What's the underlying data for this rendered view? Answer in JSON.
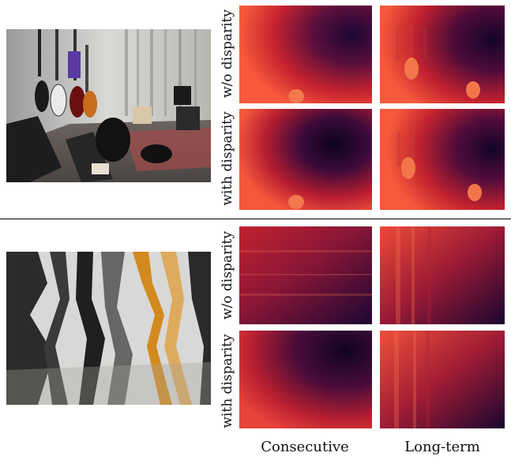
{
  "figure": {
    "top_group": {
      "row_labels": [
        "w/o disparity",
        "with disparity"
      ]
    },
    "bottom_group": {
      "row_labels": [
        "w/o disparity",
        "with disparity"
      ]
    },
    "column_labels": [
      "Consecutive",
      "Long-term"
    ]
  },
  "colors": {
    "heat_bright": "#f8593b",
    "heat_mid": "#b8202f",
    "heat_dark": "#1c0733",
    "divider": "#000000"
  },
  "icons": {
    "top_photo": "music-studio-photo",
    "bottom_photo": "distorted-panorama-photo"
  }
}
